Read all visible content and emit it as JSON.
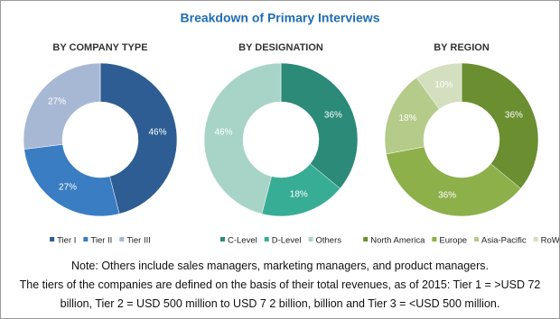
{
  "title": "Breakdown of Primary Interviews",
  "notes": [
    "Note: Others include sales managers, marketing managers, and product managers.",
    "The tiers of the companies are defined on the basis of their total revenues, as of 2015: Tier 1 = >USD 72 billion, Tier 2 = USD 500 million to USD 7 2 billion, billion and Tier 3 = <USD 500 million."
  ],
  "chart_data": [
    {
      "type": "pie",
      "donut": true,
      "title": "BY COMPANY TYPE",
      "categories": [
        "Tier I",
        "Tier II",
        "Tier III"
      ],
      "values": [
        46,
        27,
        27
      ],
      "value_labels": [
        "46%",
        "27%",
        "27%"
      ],
      "colors": [
        "#2d5d93",
        "#3a7dc2",
        "#a7b8d5"
      ]
    },
    {
      "type": "pie",
      "donut": true,
      "title": "BY DESIGNATION",
      "categories": [
        "C-Level",
        "D-Level",
        "Others"
      ],
      "values": [
        36,
        18,
        46
      ],
      "value_labels": [
        "36%",
        "18%",
        "46%"
      ],
      "colors": [
        "#2b8a78",
        "#38ad95",
        "#a8d4c8"
      ]
    },
    {
      "type": "pie",
      "donut": true,
      "title": "BY REGION",
      "categories": [
        "North America",
        "Europe",
        "Asia-Pacific",
        "RoW"
      ],
      "values": [
        36,
        36,
        18,
        10
      ],
      "value_labels": [
        "36%",
        "36%",
        "18%",
        "10%"
      ],
      "colors": [
        "#6a8e30",
        "#8db04b",
        "#b4cb89",
        "#d4dfbf"
      ]
    }
  ]
}
